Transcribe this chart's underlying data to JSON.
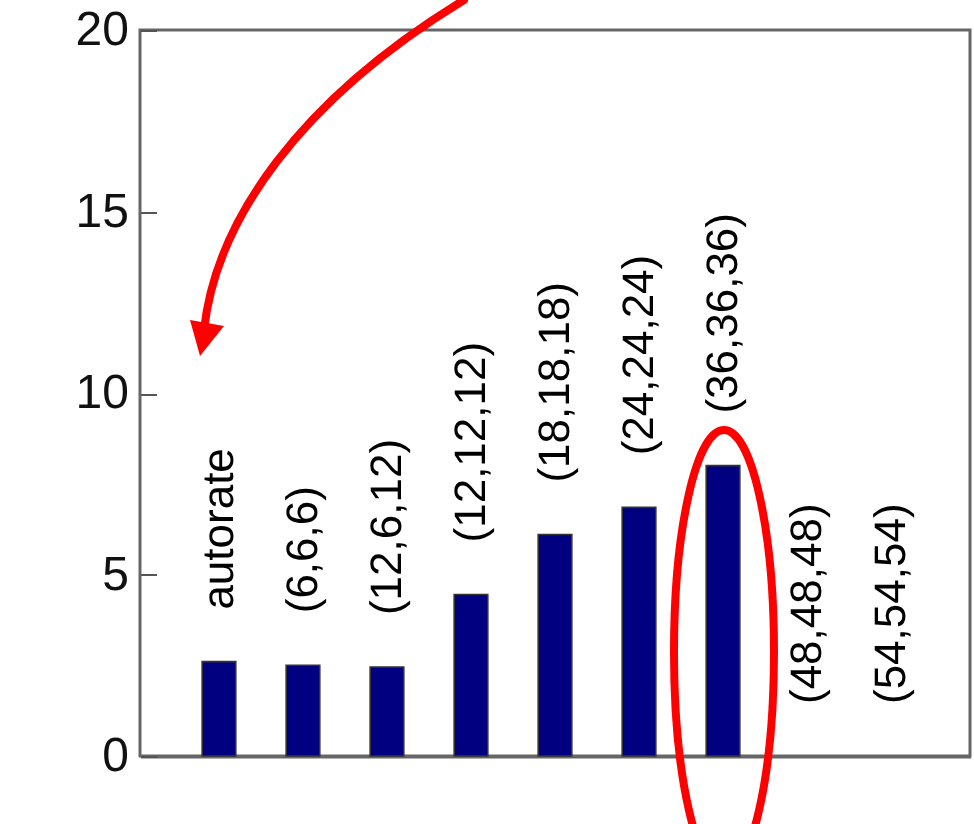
{
  "chart_data": {
    "type": "bar",
    "categories": [
      "autorate",
      "(6,6,6)",
      "(12,6,12)",
      "(12,12,12)",
      "(18,18,18)",
      "(24,24,24)",
      "(36,36,36)",
      "(48,48,48)",
      "(54,54,54)"
    ],
    "values": [
      2.6,
      2.5,
      2.45,
      4.45,
      6.1,
      6.85,
      8.0,
      null,
      null
    ],
    "color": "#000080",
    "ylim": [
      0,
      20
    ],
    "yticks": [
      0,
      5,
      10,
      15,
      20
    ],
    "tick_labels": "y",
    "grid": false
  }
}
